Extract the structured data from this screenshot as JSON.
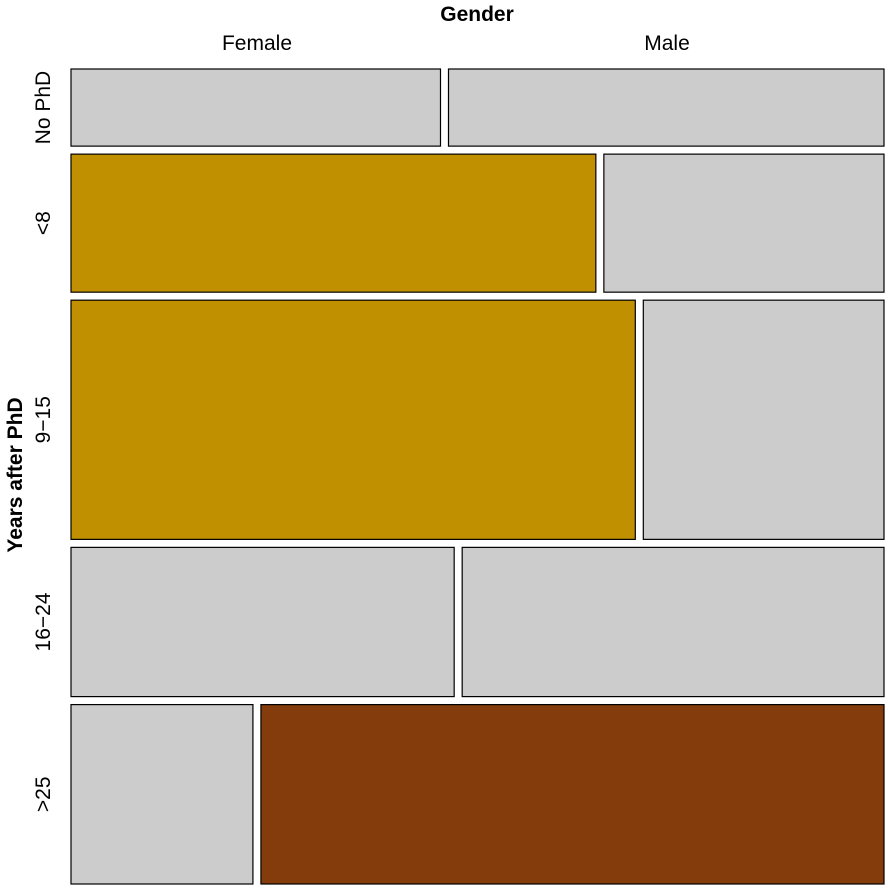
{
  "chart_data": {
    "type": "mosaic",
    "x_variable": {
      "label": "Gender",
      "levels": [
        "Female",
        "Male"
      ]
    },
    "y_variable": {
      "label": "Years after PhD",
      "levels": [
        "No PhD",
        "<8",
        "9−15",
        "16−24",
        ">25"
      ]
    },
    "row_proportions": [
      0.138,
      0.247,
      0.428,
      0.267,
      0.321
    ],
    "female_share": [
      0.459,
      0.652,
      0.701,
      0.476,
      0.226
    ],
    "cell_colors": [
      [
        "#cccccc",
        "#cccccc"
      ],
      [
        "#c09000",
        "#cccccc"
      ],
      [
        "#c09000",
        "#cccccc"
      ],
      [
        "#cccccc",
        "#cccccc"
      ],
      [
        "#cccccc",
        "#843c0c"
      ]
    ],
    "cells": [
      {
        "years": "No PhD",
        "gender": "Female",
        "shaded": false
      },
      {
        "years": "No PhD",
        "gender": "Male",
        "shaded": false
      },
      {
        "years": "<8",
        "gender": "Female",
        "shaded": true
      },
      {
        "years": "<8",
        "gender": "Male",
        "shaded": false
      },
      {
        "years": "9−15",
        "gender": "Female",
        "shaded": true
      },
      {
        "years": "9−15",
        "gender": "Male",
        "shaded": false
      },
      {
        "years": "16−24",
        "gender": "Female",
        "shaded": false
      },
      {
        "years": "16−24",
        "gender": "Male",
        "shaded": false
      },
      {
        "years": ">25",
        "gender": "Female",
        "shaded": false
      },
      {
        "years": ">25",
        "gender": "Male",
        "shaded": true
      }
    ],
    "colors": {
      "neutral": "#cccccc",
      "positive_residual": "#c09000",
      "negative_residual": "#843c0c",
      "border": "#000000"
    },
    "grid": false,
    "legend": "none"
  }
}
